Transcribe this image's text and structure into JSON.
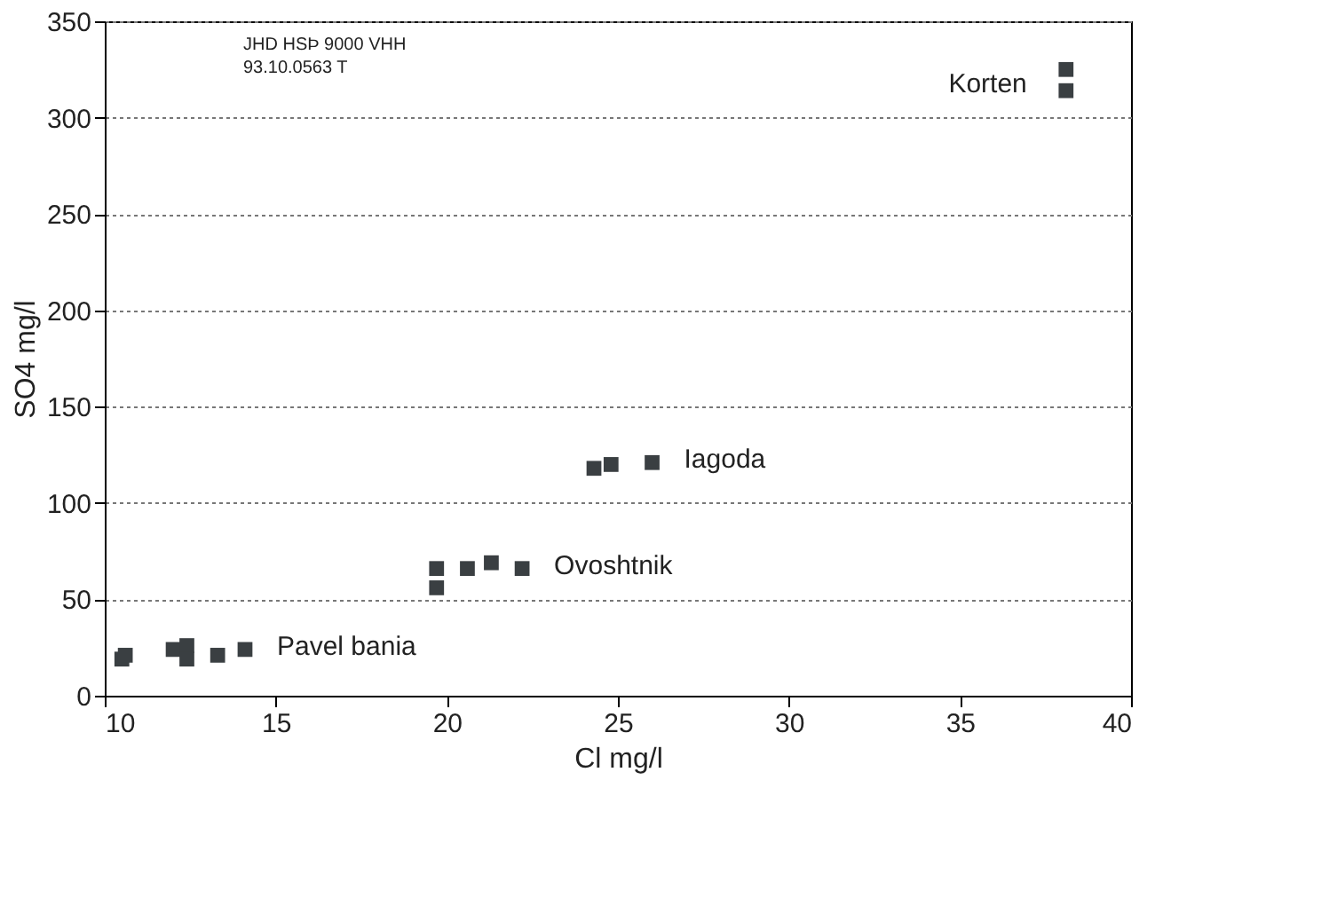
{
  "chart_data": {
    "type": "scatter",
    "xlabel": "Cl  mg/l",
    "ylabel": "SO4  mg/l",
    "x": [
      10.5,
      10.6,
      12.0,
      12.4,
      12.4,
      13.3,
      14.1,
      19.7,
      19.7,
      20.6,
      21.3,
      22.2,
      24.3,
      24.8,
      26.0,
      38.1,
      38.1
    ],
    "series": [
      {
        "color": "#3a3f42",
        "values": [
          19,
          21,
          24,
          26,
          19,
          21,
          24,
          66,
          56,
          66,
          69,
          66,
          118,
          120,
          121,
          325,
          314
        ]
      }
    ],
    "marker": "square",
    "xlim": [
      10,
      40
    ],
    "xticks": [
      10,
      15,
      20,
      25,
      30,
      35,
      40
    ],
    "ylim": [
      0,
      350
    ],
    "yticks": [
      0,
      50,
      100,
      150,
      200,
      250,
      300,
      350
    ],
    "grid": "y",
    "annotations": [
      {
        "text": "Pavel bania",
        "x": 14.1,
        "y": 24
      },
      {
        "text": "Ovoshtnik",
        "x": 22.2,
        "y": 66
      },
      {
        "text": "Iagoda",
        "x": 26.0,
        "y": 121
      },
      {
        "text": "Korten",
        "x": 38.1,
        "y": 314
      },
      "JHD HSÞ 9000 VHH",
      "93.10.0563 T"
    ]
  }
}
